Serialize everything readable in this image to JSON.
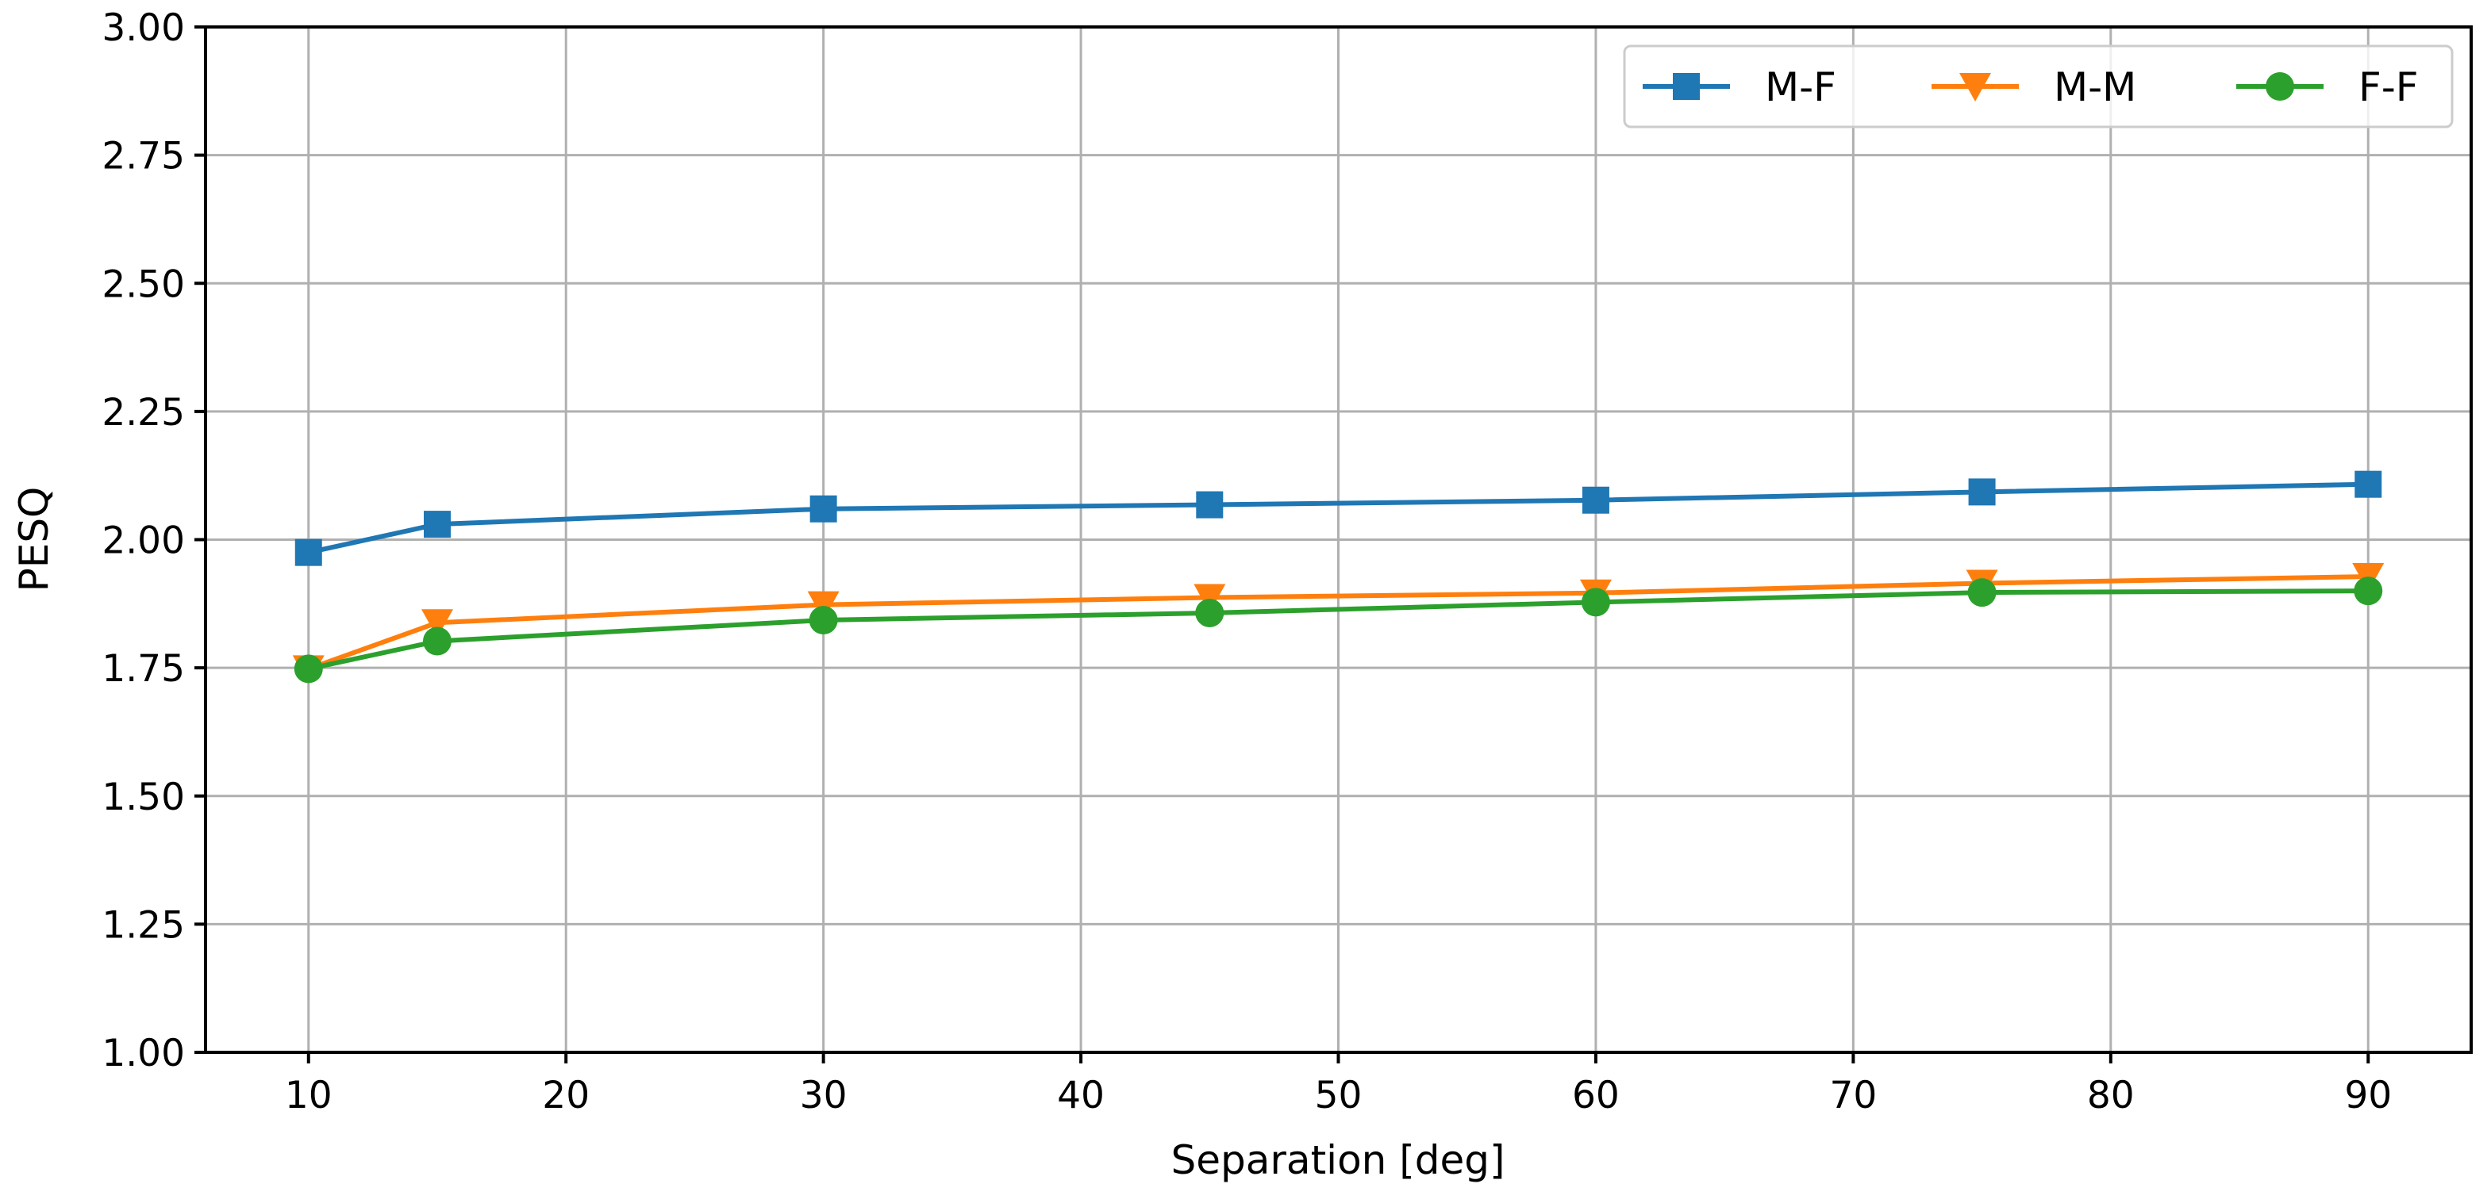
{
  "chart_data": {
    "type": "line",
    "title": "",
    "xlabel": "Separation [deg]",
    "ylabel": "PESQ",
    "x": [
      10,
      15,
      30,
      45,
      60,
      75,
      90
    ],
    "xlim": [
      6,
      94
    ],
    "ylim": [
      1.0,
      3.0
    ],
    "xticks": [
      10,
      20,
      30,
      40,
      50,
      60,
      70,
      80,
      90
    ],
    "xtick_labels": [
      "10",
      "20",
      "30",
      "40",
      "50",
      "60",
      "70",
      "80",
      "90"
    ],
    "yticks": [
      1.0,
      1.25,
      1.5,
      1.75,
      2.0,
      2.25,
      2.5,
      2.75,
      3.0
    ],
    "ytick_labels": [
      "1.00",
      "1.25",
      "1.50",
      "1.75",
      "2.00",
      "2.25",
      "2.50",
      "2.75",
      "3.00"
    ],
    "grid": true,
    "legend_position": "top-right",
    "series": [
      {
        "name": "M-F",
        "color": "#1f77b4",
        "marker": "square",
        "values": [
          1.975,
          2.03,
          2.06,
          2.068,
          2.077,
          2.093,
          2.108
        ]
      },
      {
        "name": "M-M",
        "color": "#ff7f0e",
        "marker": "triangle-down",
        "values": [
          1.748,
          1.838,
          1.873,
          1.887,
          1.896,
          1.915,
          1.928
        ]
      },
      {
        "name": "F-F",
        "color": "#2ca02c",
        "marker": "circle",
        "values": [
          1.748,
          1.802,
          1.843,
          1.857,
          1.878,
          1.897,
          1.9
        ]
      }
    ]
  }
}
